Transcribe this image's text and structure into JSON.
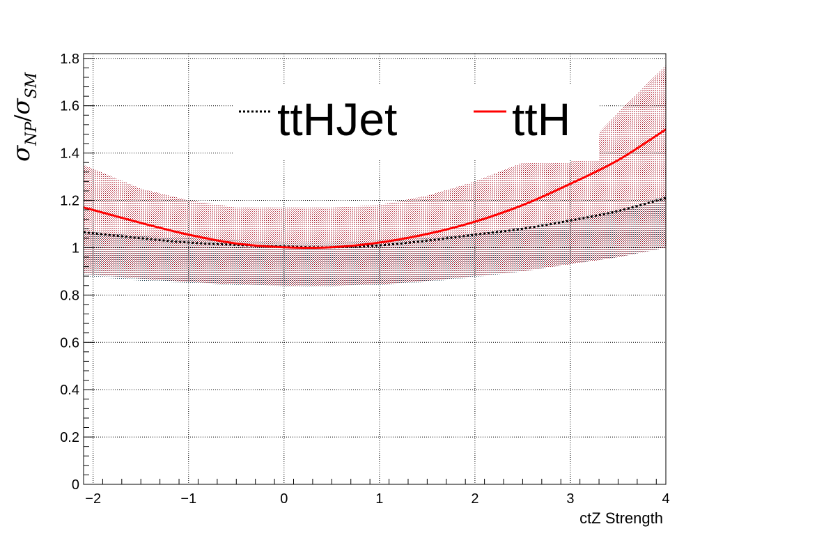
{
  "chart_data": {
    "type": "line",
    "title": "",
    "xlabel": "ctZ Strength",
    "ylabel": {
      "main": "σ",
      "sub1": "NP",
      "slash": "/",
      "main2": "σ",
      "sub2": "SM"
    },
    "xlim": [
      -2.1,
      4
    ],
    "ylim": [
      0,
      1.82
    ],
    "xticks": [
      -2,
      -1,
      0,
      1,
      2,
      3,
      4
    ],
    "xtick_labels": [
      "−2",
      "−1",
      "0",
      "1",
      "2",
      "3",
      "4"
    ],
    "yticks": [
      0,
      0.2,
      0.4,
      0.6,
      0.8,
      1,
      1.2,
      1.4,
      1.6,
      1.8
    ],
    "ytick_labels": [
      "0",
      "0.2",
      "0.4",
      "0.6",
      "0.8",
      "1",
      "1.2",
      "1.4",
      "1.6",
      "1.8"
    ],
    "grid": true,
    "legend_position": "top",
    "series": [
      {
        "name": "ttHJet",
        "color": "#000000",
        "style": "dotted",
        "band_color": "#2a4a5a",
        "x": [
          -2.1,
          -1.5,
          -1.0,
          -0.5,
          0.0,
          0.5,
          1.0,
          1.5,
          2.0,
          2.5,
          3.0,
          3.5,
          4.0
        ],
        "y": [
          1.065,
          1.04,
          1.022,
          1.012,
          1.005,
          1.002,
          1.01,
          1.03,
          1.055,
          1.08,
          1.115,
          1.155,
          1.21
        ],
        "band_lower": [
          0.88,
          0.86,
          0.85,
          0.84,
          0.835,
          0.835,
          0.84,
          0.855,
          0.875,
          0.9,
          0.93,
          0.96,
          1.0
        ],
        "band_upper": [
          1.07,
          1.05,
          1.04,
          1.03,
          1.02,
          1.02,
          1.03,
          1.04,
          1.06,
          1.09,
          1.12,
          1.16,
          1.22
        ]
      },
      {
        "name": "ttH",
        "color": "#ff0000",
        "style": "solid",
        "band_color": "#a01020",
        "x": [
          -2.1,
          -1.5,
          -1.0,
          -0.5,
          0.0,
          0.5,
          1.0,
          1.5,
          2.0,
          2.5,
          3.0,
          3.5,
          4.0
        ],
        "y": [
          1.17,
          1.105,
          1.055,
          1.018,
          1.002,
          1.002,
          1.022,
          1.058,
          1.11,
          1.18,
          1.27,
          1.37,
          1.5
        ],
        "band_lower": [
          0.89,
          0.87,
          0.855,
          0.845,
          0.84,
          0.84,
          0.845,
          0.86,
          0.88,
          0.9,
          0.93,
          0.96,
          1.0
        ],
        "band_upper": [
          1.35,
          1.25,
          1.2,
          1.17,
          1.17,
          1.17,
          1.18,
          1.22,
          1.28,
          1.36,
          1.36,
          1.57,
          1.77
        ]
      }
    ]
  }
}
